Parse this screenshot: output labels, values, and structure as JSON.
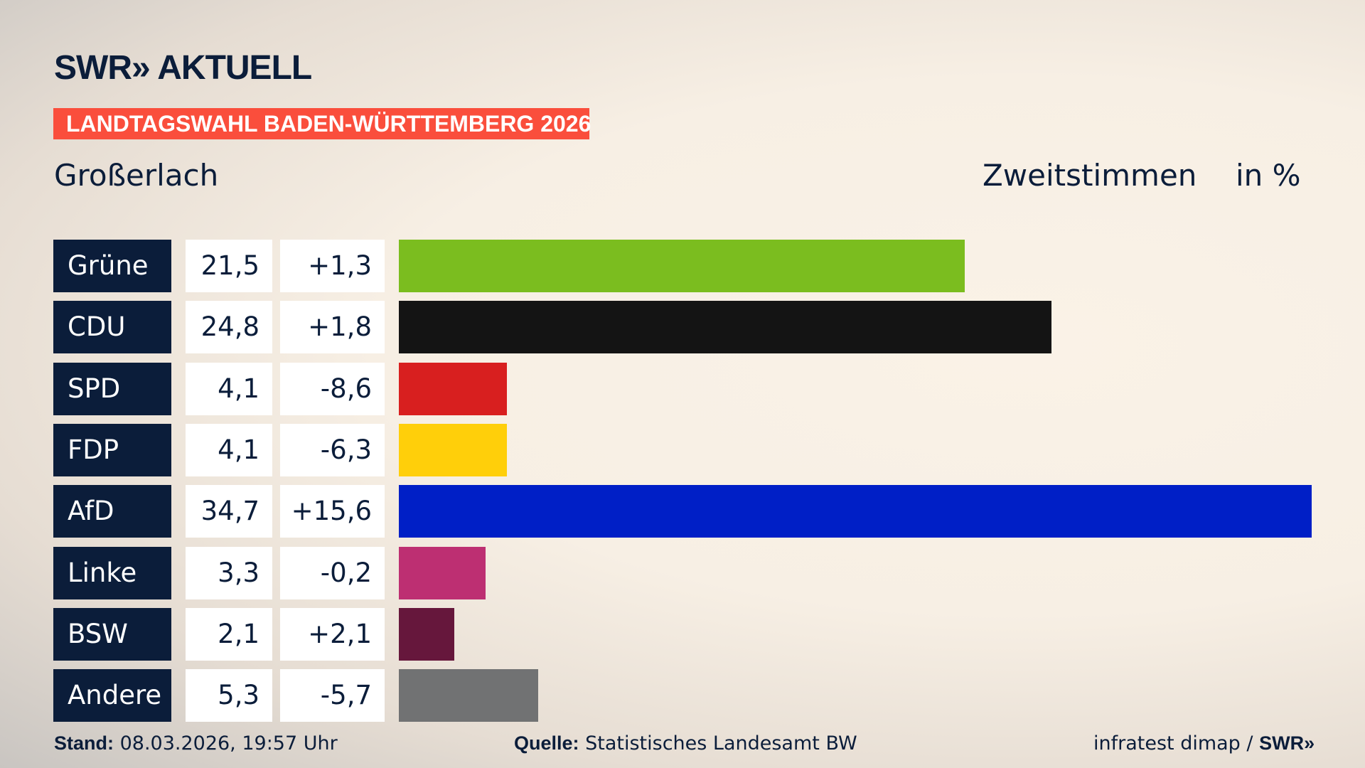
{
  "header": {
    "logo": "SWR» AKTUELL",
    "banner": "LANDTAGSWAHL BADEN-WÜRTTEMBERG 2026",
    "place": "Großerlach",
    "measure": "Zweitstimmen",
    "unit": "in %"
  },
  "chart_data": {
    "type": "bar",
    "orientation": "horizontal",
    "xlim": [
      0,
      34.7
    ],
    "categories": [
      "Grüne",
      "CDU",
      "SPD",
      "FDP",
      "AfD",
      "Linke",
      "BSW",
      "Andere"
    ],
    "values": [
      21.5,
      24.8,
      4.1,
      4.1,
      34.7,
      3.3,
      2.1,
      5.3
    ],
    "value_labels": [
      "21,5",
      "24,8",
      "4,1",
      "4,1",
      "34,7",
      "3,3",
      "2,1",
      "5,3"
    ],
    "diff_labels": [
      "+1,3",
      "+1,8",
      "-8,6",
      "-6,3",
      "+15,6",
      "-0,2",
      "+2,1",
      "-5,7"
    ],
    "diffs": [
      1.3,
      1.8,
      -8.6,
      -6.3,
      15.6,
      -0.2,
      2.1,
      -5.7
    ],
    "colors": [
      "#7bbd1f",
      "#141414",
      "#d81f1f",
      "#ffcf0a",
      "#001fc6",
      "#bd2f72",
      "#66173c",
      "#717273"
    ]
  },
  "footer": {
    "stand_label": "Stand:",
    "stand_value": " 08.03.2026, 19:57 Uhr",
    "source_label": "Quelle:",
    "source_value": " Statistisches Landesamt BW",
    "credit": "infratest dimap / ",
    "credit_logo": "SWR»"
  }
}
